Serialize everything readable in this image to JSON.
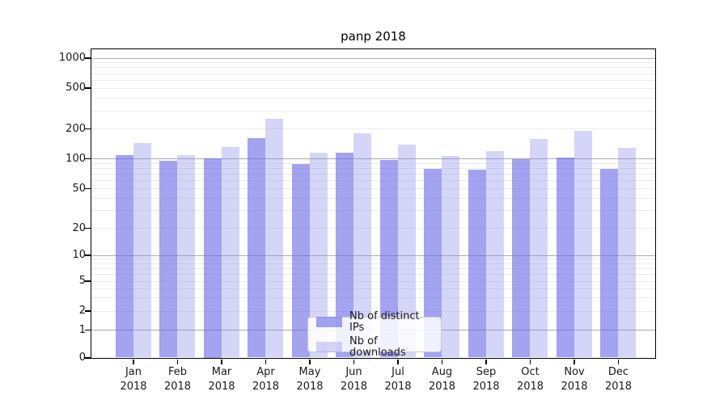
{
  "title": "panp 2018",
  "chart_data": {
    "type": "bar",
    "title": "panp 2018",
    "categories": [
      "Jan 2018",
      "Feb 2018",
      "Mar 2018",
      "Apr 2018",
      "May 2018",
      "Jun 2018",
      "Jul 2018",
      "Aug 2018",
      "Sep 2018",
      "Oct 2018",
      "Nov 2018",
      "Dec 2018"
    ],
    "series": [
      {
        "name": "Nb of distinct IPs",
        "color": "rgba(102,102,232,0.60)",
        "values": [
          108,
          95,
          100,
          161,
          88,
          114,
          97,
          78,
          77,
          99,
          101,
          78
        ]
      },
      {
        "name": "Nb of downloads",
        "color": "rgba(136,136,236,0.35)",
        "values": [
          142,
          108,
          129,
          250,
          115,
          180,
          137,
          105,
          118,
          156,
          188,
          128
        ]
      }
    ],
    "xlabel": "",
    "ylabel": "",
    "yscale": "symlog",
    "ylim": [
      0,
      1260
    ],
    "yticks": [
      0,
      1,
      2,
      5,
      10,
      20,
      50,
      100,
      200,
      500,
      1000
    ],
    "yticks_minor": [
      3,
      4,
      6,
      7,
      8,
      9,
      30,
      40,
      60,
      70,
      80,
      90,
      300,
      400,
      600,
      700,
      800,
      900
    ],
    "grid": true,
    "legend_position": "lower center"
  }
}
